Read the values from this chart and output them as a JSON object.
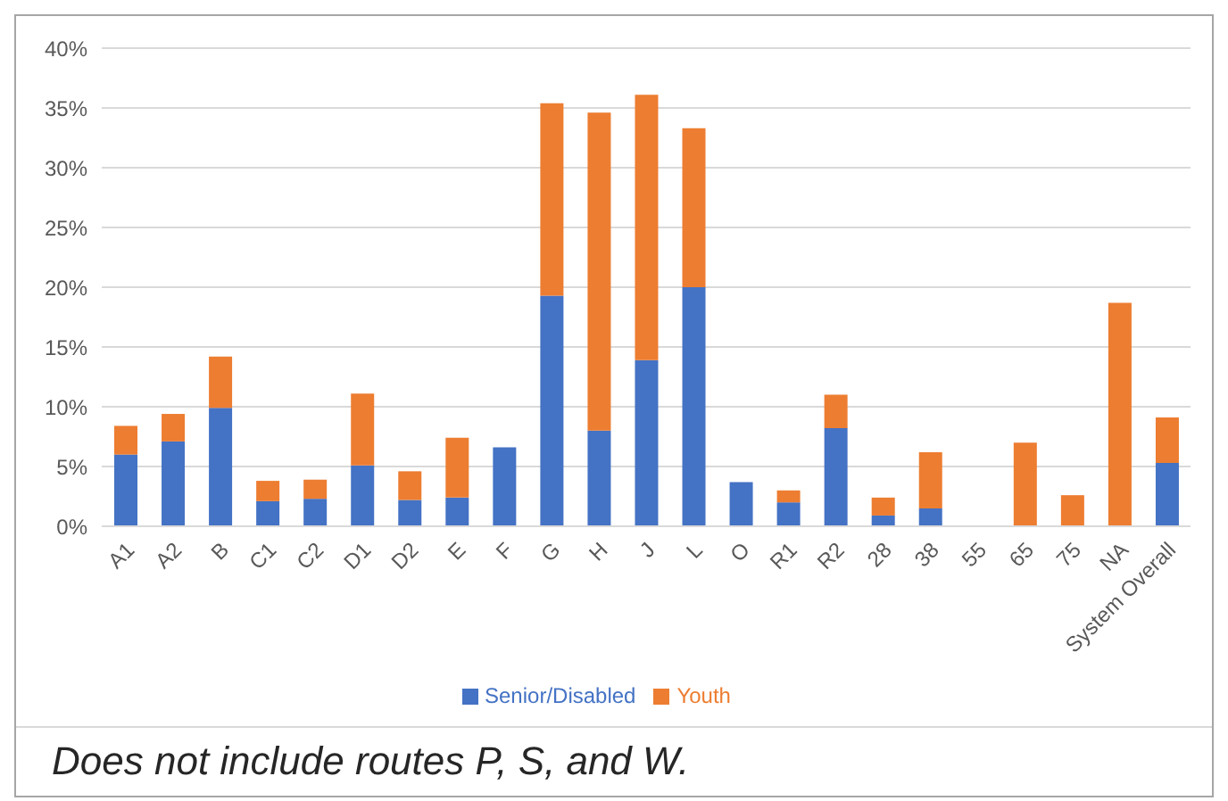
{
  "chart_data": {
    "type": "bar",
    "stacked": true,
    "categories": [
      "A1",
      "A2",
      "B",
      "C1",
      "C2",
      "D1",
      "D2",
      "E",
      "F",
      "G",
      "H",
      "J",
      "L",
      "O",
      "R1",
      "R2",
      "28",
      "38",
      "55",
      "65",
      "75",
      "NA",
      "System Overall"
    ],
    "series": [
      {
        "name": "Senior/Disabled",
        "color": "#4472c4",
        "values": [
          6.0,
          7.1,
          9.9,
          2.1,
          2.3,
          5.1,
          2.2,
          2.4,
          6.6,
          19.3,
          8.0,
          13.9,
          20.0,
          3.7,
          2.0,
          8.2,
          0.9,
          1.5,
          0,
          0,
          0,
          0,
          5.3
        ]
      },
      {
        "name": "Youth",
        "color": "#ed7d31",
        "values": [
          2.4,
          2.3,
          4.3,
          1.7,
          1.6,
          6.0,
          2.4,
          5.0,
          0,
          16.1,
          26.6,
          22.2,
          13.3,
          0,
          1.0,
          2.8,
          1.5,
          4.7,
          0,
          7.0,
          2.6,
          18.7,
          3.8
        ]
      }
    ],
    "ylim": [
      0,
      40
    ],
    "yticks": [
      {
        "value": 0,
        "label": "0%"
      },
      {
        "value": 5,
        "label": "5%"
      },
      {
        "value": 10,
        "label": "10%"
      },
      {
        "value": 15,
        "label": "15%"
      },
      {
        "value": 20,
        "label": "20%"
      },
      {
        "value": 25,
        "label": "25%"
      },
      {
        "value": 30,
        "label": "30%"
      },
      {
        "value": 35,
        "label": "35%"
      },
      {
        "value": 40,
        "label": "40%"
      }
    ],
    "grid": "y",
    "legend": "bottom",
    "annotations": [
      "Does not include routes P, S, and W."
    ]
  }
}
